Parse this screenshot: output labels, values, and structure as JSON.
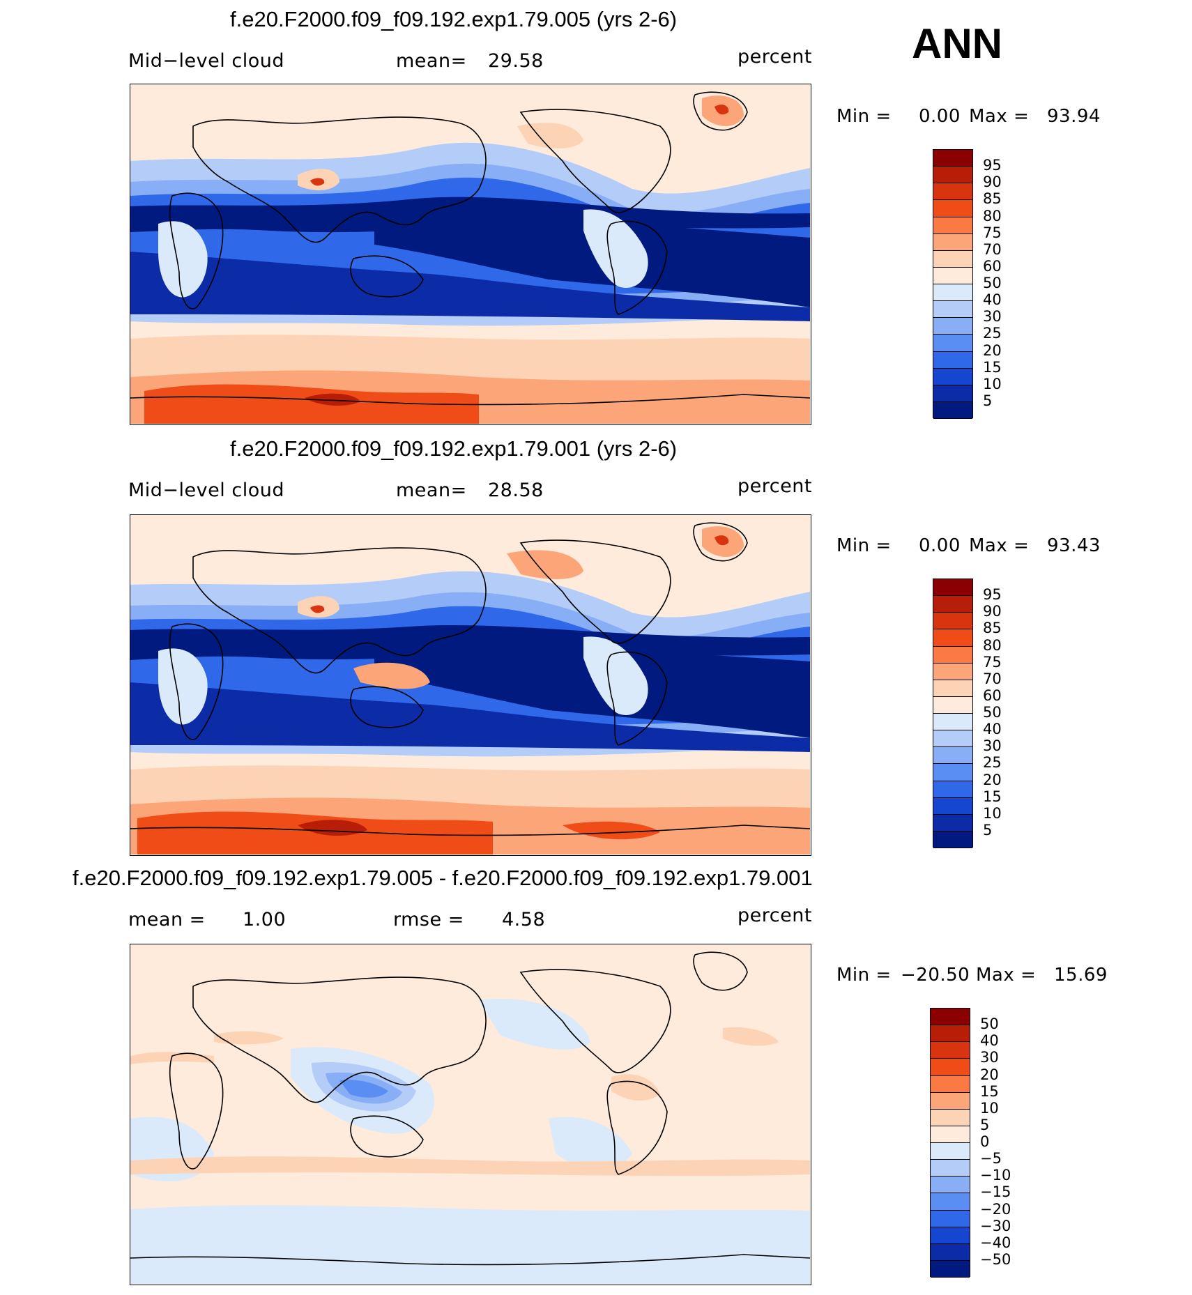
{
  "season": "ANN",
  "panels": [
    {
      "title": "f.e20.F2000.f09_f09.192.exp1.79.005 (yrs 2-6)",
      "left_label": "Mid−level cloud",
      "stat_label": "mean=",
      "stat_value": "29.58",
      "units": "percent",
      "min_label": "Min =",
      "min_value": "0.00",
      "max_label": "Max =",
      "max_value": "93.94",
      "colorbar_ticks": [
        "95",
        "90",
        "85",
        "80",
        "75",
        "70",
        "60",
        "50",
        "40",
        "30",
        "25",
        "20",
        "15",
        "10",
        "5"
      ],
      "colorbar_colors": [
        "#8b0000",
        "#b81d08",
        "#d93410",
        "#f04c18",
        "#fb7a44",
        "#fca579",
        "#fdd3b6",
        "#feebdc",
        "#dbeafb",
        "#b4cdf8",
        "#88aef5",
        "#5b8ef2",
        "#2f69ea",
        "#1546cf",
        "#0b2ca6",
        "#001a80"
      ]
    },
    {
      "title": "f.e20.F2000.f09_f09.192.exp1.79.001 (yrs 2-6)",
      "left_label": "Mid−level cloud",
      "stat_label": "mean=",
      "stat_value": "28.58",
      "units": "percent",
      "min_label": "Min =",
      "min_value": "0.00",
      "max_label": "Max =",
      "max_value": "93.43",
      "colorbar_ticks": [
        "95",
        "90",
        "85",
        "80",
        "75",
        "70",
        "60",
        "50",
        "40",
        "30",
        "25",
        "20",
        "15",
        "10",
        "5"
      ],
      "colorbar_colors": [
        "#8b0000",
        "#b81d08",
        "#d93410",
        "#f04c18",
        "#fb7a44",
        "#fca579",
        "#fdd3b6",
        "#feebdc",
        "#dbeafb",
        "#b4cdf8",
        "#88aef5",
        "#5b8ef2",
        "#2f69ea",
        "#1546cf",
        "#0b2ca6",
        "#001a80"
      ]
    },
    {
      "title": "f.e20.F2000.f09_f09.192.exp1.79.005 - f.e20.F2000.f09_f09.192.exp1.79.001",
      "left_label": "mean =",
      "left_value": "1.00",
      "stat_label": "rmse =",
      "stat_value": "4.58",
      "units": "percent",
      "min_label": "Min =",
      "min_value": "−20.50",
      "max_label": "Max =",
      "max_value": "15.69",
      "colorbar_ticks": [
        "50",
        "40",
        "30",
        "20",
        "15",
        "10",
        "5",
        "0",
        "−5",
        "−10",
        "−15",
        "−20",
        "−30",
        "−40",
        "−50"
      ],
      "colorbar_colors": [
        "#8b0000",
        "#b81d08",
        "#d93410",
        "#f04c18",
        "#fb7a44",
        "#fca579",
        "#fdd3b6",
        "#feebdc",
        "#dbeafb",
        "#b4cdf8",
        "#88aef5",
        "#5b8ef2",
        "#2f69ea",
        "#1546cf",
        "#0b2ca6",
        "#001a80"
      ]
    }
  ]
}
